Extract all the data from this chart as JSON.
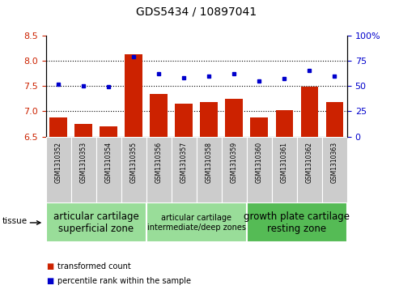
{
  "title": "GDS5434 / 10897041",
  "samples": [
    "GSM1310352",
    "GSM1310353",
    "GSM1310354",
    "GSM1310355",
    "GSM1310356",
    "GSM1310357",
    "GSM1310358",
    "GSM1310359",
    "GSM1310360",
    "GSM1310361",
    "GSM1310362",
    "GSM1310363"
  ],
  "transformed_count": [
    6.88,
    6.75,
    6.7,
    8.12,
    7.35,
    7.15,
    7.18,
    7.25,
    6.88,
    7.02,
    7.48,
    7.18
  ],
  "percentile_rank": [
    52,
    50,
    49,
    79,
    62,
    58,
    60,
    62,
    55,
    57,
    65,
    60
  ],
  "ylim_left": [
    6.5,
    8.5
  ],
  "ylim_right": [
    0,
    100
  ],
  "yticks_left": [
    6.5,
    7.0,
    7.5,
    8.0,
    8.5
  ],
  "yticks_right": [
    0,
    25,
    50,
    75,
    100
  ],
  "ytick_labels_right": [
    "0",
    "25",
    "50",
    "75",
    "100%"
  ],
  "hlines": [
    7.0,
    7.5,
    8.0
  ],
  "bar_color": "#cc2200",
  "dot_color": "#0000cc",
  "cell_bg_color": "#cccccc",
  "plot_bg": "#ffffff",
  "tissue_groups": [
    {
      "label": "articular cartilage\nsuperficial zone",
      "start": 0,
      "end": 3,
      "color": "#99dd99",
      "fontsize": 8.5
    },
    {
      "label": "articular cartilage\nintermediate/deep zones",
      "start": 4,
      "end": 7,
      "color": "#99dd99",
      "fontsize": 7.0
    },
    {
      "label": "growth plate cartilage\nresting zone",
      "start": 8,
      "end": 11,
      "color": "#55bb55",
      "fontsize": 8.5
    }
  ],
  "tissue_label": "tissue",
  "legend_bar_label": "transformed count",
  "legend_dot_label": "percentile rank within the sample",
  "bar_width": 0.7,
  "tick_color_left": "#cc2200",
  "tick_color_right": "#0000cc"
}
